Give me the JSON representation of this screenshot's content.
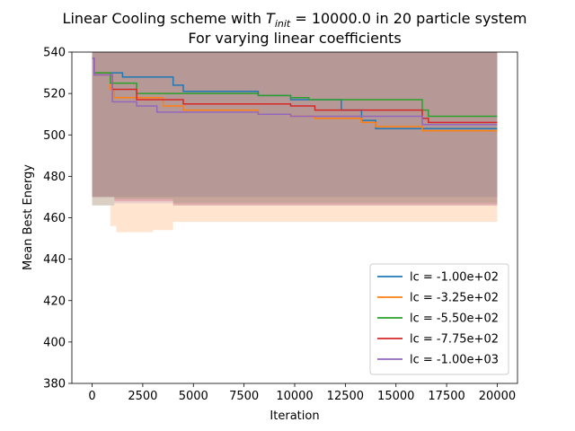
{
  "chart_data": {
    "type": "line",
    "title_line1_prefix": "Linear Cooling scheme with ",
    "title_var": "T",
    "title_sub": "init",
    "title_line1_suffix": " = 10000.0 in 20 particle system",
    "title_line2": "For varying linear coefficients",
    "xlabel": "Iteration",
    "ylabel": "Mean Best Energy",
    "xlim": [
      -1000,
      21000
    ],
    "ylim": [
      380,
      540
    ],
    "xticks": [
      0,
      2500,
      5000,
      7500,
      10000,
      12500,
      15000,
      17500,
      20000
    ],
    "yticks": [
      380,
      400,
      420,
      440,
      460,
      480,
      500,
      520,
      540
    ],
    "legend_position": "lower-right",
    "series": [
      {
        "name": "lc = -1.00e+02",
        "color": "#1f77b4",
        "band_color": "#1f77b4",
        "steps": [
          [
            0,
            537
          ],
          [
            100,
            530
          ],
          [
            1500,
            528
          ],
          [
            4000,
            524
          ],
          [
            4500,
            521
          ],
          [
            8200,
            519
          ],
          [
            9800,
            517
          ],
          [
            12300,
            512
          ],
          [
            13300,
            507
          ],
          [
            14000,
            503
          ],
          [
            20000,
            503
          ]
        ],
        "band_lower": [
          [
            0,
            466
          ],
          [
            900,
            466
          ],
          [
            1100,
            470
          ],
          [
            20000,
            470
          ]
        ],
        "band_upper": [
          [
            0,
            540
          ],
          [
            20000,
            540
          ]
        ]
      },
      {
        "name": "lc = -3.25e+02",
        "color": "#ff7f0e",
        "band_color": "#ff7f0e",
        "steps": [
          [
            0,
            537
          ],
          [
            100,
            530
          ],
          [
            900,
            522
          ],
          [
            1100,
            518
          ],
          [
            3500,
            514
          ],
          [
            4500,
            512
          ],
          [
            8200,
            510
          ],
          [
            9800,
            509
          ],
          [
            11000,
            508
          ],
          [
            13300,
            506
          ],
          [
            14000,
            504
          ],
          [
            16300,
            502
          ],
          [
            20000,
            502
          ]
        ],
        "band_lower": [
          [
            0,
            466
          ],
          [
            900,
            456
          ],
          [
            1200,
            453
          ],
          [
            3000,
            454
          ],
          [
            4000,
            458
          ],
          [
            20000,
            454
          ]
        ],
        "band_upper": [
          [
            0,
            540
          ],
          [
            20000,
            540
          ]
        ]
      },
      {
        "name": "lc = -5.50e+02",
        "color": "#2ca02c",
        "band_color": "#2ca02c",
        "steps": [
          [
            0,
            537
          ],
          [
            100,
            530
          ],
          [
            900,
            525
          ],
          [
            2200,
            520
          ],
          [
            4500,
            520
          ],
          [
            8200,
            519
          ],
          [
            9800,
            518
          ],
          [
            10700,
            517
          ],
          [
            16300,
            512
          ],
          [
            16600,
            509
          ],
          [
            20000,
            509
          ]
        ],
        "band_lower": [
          [
            0,
            470
          ],
          [
            900,
            470
          ],
          [
            1100,
            469
          ],
          [
            4000,
            467
          ],
          [
            20000,
            467
          ]
        ],
        "band_upper": [
          [
            0,
            540
          ],
          [
            20000,
            540
          ]
        ]
      },
      {
        "name": "lc = -7.75e+02",
        "color": "#d62728",
        "band_color": "#d62728",
        "steps": [
          [
            0,
            537
          ],
          [
            100,
            529
          ],
          [
            1000,
            522
          ],
          [
            2200,
            517
          ],
          [
            4500,
            515
          ],
          [
            8200,
            515
          ],
          [
            9800,
            514
          ],
          [
            11000,
            512
          ],
          [
            16300,
            508
          ],
          [
            16600,
            506
          ],
          [
            20000,
            506
          ]
        ],
        "band_lower": [
          [
            0,
            470
          ],
          [
            900,
            470
          ],
          [
            1100,
            468
          ],
          [
            4000,
            466
          ],
          [
            20000,
            466
          ]
        ],
        "band_upper": [
          [
            0,
            540
          ],
          [
            20000,
            540
          ]
        ]
      },
      {
        "name": "lc = -1.00e+03",
        "color": "#9467bd",
        "band_color": "#9467bd",
        "steps": [
          [
            0,
            537
          ],
          [
            100,
            529
          ],
          [
            1000,
            516
          ],
          [
            2200,
            514
          ],
          [
            3200,
            511
          ],
          [
            4500,
            511
          ],
          [
            8200,
            510
          ],
          [
            9800,
            509
          ],
          [
            13300,
            509
          ],
          [
            16300,
            505
          ],
          [
            20000,
            505
          ]
        ],
        "band_lower": [
          [
            0,
            470
          ],
          [
            900,
            470
          ],
          [
            1100,
            467
          ],
          [
            4000,
            466
          ],
          [
            20000,
            466
          ]
        ],
        "band_upper": [
          [
            0,
            540
          ],
          [
            20000,
            540
          ]
        ]
      }
    ]
  }
}
